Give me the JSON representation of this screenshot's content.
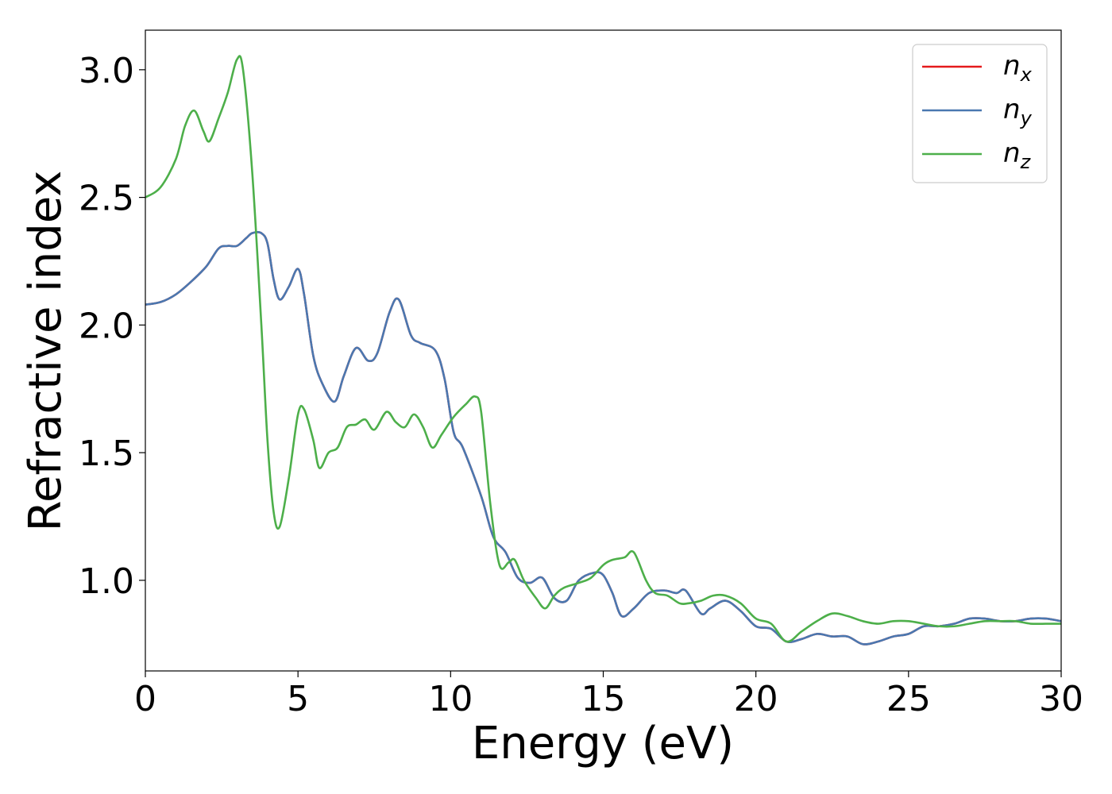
{
  "chart_data": {
    "type": "line",
    "xlabel": "Energy (eV)",
    "ylabel": "Refractive index",
    "xlim": [
      0,
      30
    ],
    "ylim": [
      0.645,
      3.155
    ],
    "xticks": [
      0,
      5,
      10,
      15,
      20,
      25,
      30
    ],
    "yticks": [
      1.0,
      1.5,
      2.0,
      2.5,
      3.0
    ],
    "xtick_labels": [
      "0",
      "5",
      "10",
      "15",
      "20",
      "25",
      "30"
    ],
    "ytick_labels": [
      "1.0",
      "1.5",
      "2.0",
      "2.5",
      "3.0"
    ],
    "grid": false,
    "legend_position": "top-right",
    "series": [
      {
        "name": "n",
        "sub": "x",
        "color": "#e41a1c",
        "points": [
          [
            0,
            2.08
          ],
          [
            0.5,
            2.09
          ],
          [
            1,
            2.12
          ],
          [
            1.5,
            2.17
          ],
          [
            2,
            2.23
          ],
          [
            2.4,
            2.3
          ],
          [
            2.7,
            2.31
          ],
          [
            3.0,
            2.31
          ],
          [
            3.3,
            2.34
          ],
          [
            3.5,
            2.36
          ],
          [
            3.8,
            2.36
          ],
          [
            4.0,
            2.32
          ],
          [
            4.2,
            2.18
          ],
          [
            4.4,
            2.1
          ],
          [
            4.7,
            2.15
          ],
          [
            5.0,
            2.22
          ],
          [
            5.2,
            2.12
          ],
          [
            5.5,
            1.88
          ],
          [
            5.8,
            1.77
          ],
          [
            6.2,
            1.7
          ],
          [
            6.5,
            1.8
          ],
          [
            6.9,
            1.91
          ],
          [
            7.3,
            1.86
          ],
          [
            7.6,
            1.89
          ],
          [
            8.0,
            2.05
          ],
          [
            8.3,
            2.1
          ],
          [
            8.7,
            1.96
          ],
          [
            9.0,
            1.93
          ],
          [
            9.5,
            1.9
          ],
          [
            9.8,
            1.79
          ],
          [
            10.1,
            1.58
          ],
          [
            10.4,
            1.52
          ],
          [
            11.0,
            1.33
          ],
          [
            11.4,
            1.17
          ],
          [
            11.8,
            1.11
          ],
          [
            12.2,
            1.01
          ],
          [
            12.6,
            0.99
          ],
          [
            13.0,
            1.01
          ],
          [
            13.4,
            0.93
          ],
          [
            13.8,
            0.92
          ],
          [
            14.2,
            1.0
          ],
          [
            14.7,
            1.03
          ],
          [
            15.0,
            1.02
          ],
          [
            15.3,
            0.95
          ],
          [
            15.6,
            0.86
          ],
          [
            16.0,
            0.89
          ],
          [
            16.5,
            0.95
          ],
          [
            17.0,
            0.96
          ],
          [
            17.4,
            0.95
          ],
          [
            17.7,
            0.96
          ],
          [
            18.2,
            0.87
          ],
          [
            18.5,
            0.89
          ],
          [
            19.0,
            0.92
          ],
          [
            19.5,
            0.88
          ],
          [
            20.0,
            0.82
          ],
          [
            20.5,
            0.81
          ],
          [
            21.0,
            0.76
          ],
          [
            21.5,
            0.77
          ],
          [
            22.0,
            0.79
          ],
          [
            22.5,
            0.78
          ],
          [
            23.0,
            0.78
          ],
          [
            23.5,
            0.75
          ],
          [
            24.0,
            0.76
          ],
          [
            24.5,
            0.78
          ],
          [
            25.0,
            0.79
          ],
          [
            25.5,
            0.82
          ],
          [
            26.0,
            0.82
          ],
          [
            26.5,
            0.83
          ],
          [
            27.0,
            0.85
          ],
          [
            27.5,
            0.85
          ],
          [
            28.0,
            0.84
          ],
          [
            28.5,
            0.84
          ],
          [
            29.0,
            0.85
          ],
          [
            29.5,
            0.85
          ],
          [
            30.0,
            0.84
          ]
        ]
      },
      {
        "name": "n",
        "sub": "y",
        "color": "#4a78b0",
        "points": [
          [
            0,
            2.08
          ],
          [
            0.5,
            2.09
          ],
          [
            1,
            2.12
          ],
          [
            1.5,
            2.17
          ],
          [
            2,
            2.23
          ],
          [
            2.4,
            2.3
          ],
          [
            2.7,
            2.31
          ],
          [
            3.0,
            2.31
          ],
          [
            3.3,
            2.34
          ],
          [
            3.5,
            2.36
          ],
          [
            3.8,
            2.36
          ],
          [
            4.0,
            2.32
          ],
          [
            4.2,
            2.18
          ],
          [
            4.4,
            2.1
          ],
          [
            4.7,
            2.15
          ],
          [
            5.0,
            2.22
          ],
          [
            5.2,
            2.12
          ],
          [
            5.5,
            1.88
          ],
          [
            5.8,
            1.77
          ],
          [
            6.2,
            1.7
          ],
          [
            6.5,
            1.8
          ],
          [
            6.9,
            1.91
          ],
          [
            7.3,
            1.86
          ],
          [
            7.6,
            1.89
          ],
          [
            8.0,
            2.05
          ],
          [
            8.3,
            2.1
          ],
          [
            8.7,
            1.96
          ],
          [
            9.0,
            1.93
          ],
          [
            9.5,
            1.9
          ],
          [
            9.8,
            1.79
          ],
          [
            10.1,
            1.58
          ],
          [
            10.4,
            1.52
          ],
          [
            11.0,
            1.33
          ],
          [
            11.4,
            1.17
          ],
          [
            11.8,
            1.11
          ],
          [
            12.2,
            1.01
          ],
          [
            12.6,
            0.99
          ],
          [
            13.0,
            1.01
          ],
          [
            13.4,
            0.93
          ],
          [
            13.8,
            0.92
          ],
          [
            14.2,
            1.0
          ],
          [
            14.7,
            1.03
          ],
          [
            15.0,
            1.02
          ],
          [
            15.3,
            0.95
          ],
          [
            15.6,
            0.86
          ],
          [
            16.0,
            0.89
          ],
          [
            16.5,
            0.95
          ],
          [
            17.0,
            0.96
          ],
          [
            17.4,
            0.95
          ],
          [
            17.7,
            0.96
          ],
          [
            18.2,
            0.87
          ],
          [
            18.5,
            0.89
          ],
          [
            19.0,
            0.92
          ],
          [
            19.5,
            0.88
          ],
          [
            20.0,
            0.82
          ],
          [
            20.5,
            0.81
          ],
          [
            21.0,
            0.76
          ],
          [
            21.5,
            0.77
          ],
          [
            22.0,
            0.79
          ],
          [
            22.5,
            0.78
          ],
          [
            23.0,
            0.78
          ],
          [
            23.5,
            0.75
          ],
          [
            24.0,
            0.76
          ],
          [
            24.5,
            0.78
          ],
          [
            25.0,
            0.79
          ],
          [
            25.5,
            0.82
          ],
          [
            26.0,
            0.82
          ],
          [
            26.5,
            0.83
          ],
          [
            27.0,
            0.85
          ],
          [
            27.5,
            0.85
          ],
          [
            28.0,
            0.84
          ],
          [
            28.5,
            0.84
          ],
          [
            29.0,
            0.85
          ],
          [
            29.5,
            0.85
          ],
          [
            30.0,
            0.84
          ]
        ]
      },
      {
        "name": "n",
        "sub": "z",
        "color": "#4daf4a",
        "points": [
          [
            0,
            2.5
          ],
          [
            0.5,
            2.54
          ],
          [
            1.0,
            2.65
          ],
          [
            1.3,
            2.78
          ],
          [
            1.6,
            2.84
          ],
          [
            1.9,
            2.76
          ],
          [
            2.1,
            2.72
          ],
          [
            2.4,
            2.81
          ],
          [
            2.7,
            2.91
          ],
          [
            3.0,
            3.04
          ],
          [
            3.2,
            3.0
          ],
          [
            3.5,
            2.6
          ],
          [
            3.8,
            2.0
          ],
          [
            4.0,
            1.55
          ],
          [
            4.2,
            1.27
          ],
          [
            4.4,
            1.21
          ],
          [
            4.7,
            1.4
          ],
          [
            5.0,
            1.65
          ],
          [
            5.2,
            1.67
          ],
          [
            5.5,
            1.55
          ],
          [
            5.7,
            1.44
          ],
          [
            6.0,
            1.5
          ],
          [
            6.3,
            1.52
          ],
          [
            6.6,
            1.6
          ],
          [
            6.9,
            1.61
          ],
          [
            7.2,
            1.63
          ],
          [
            7.5,
            1.59
          ],
          [
            7.9,
            1.66
          ],
          [
            8.2,
            1.62
          ],
          [
            8.5,
            1.6
          ],
          [
            8.8,
            1.65
          ],
          [
            9.1,
            1.6
          ],
          [
            9.4,
            1.52
          ],
          [
            9.7,
            1.57
          ],
          [
            10.1,
            1.64
          ],
          [
            10.5,
            1.69
          ],
          [
            10.8,
            1.72
          ],
          [
            11.0,
            1.66
          ],
          [
            11.3,
            1.3
          ],
          [
            11.6,
            1.06
          ],
          [
            11.9,
            1.07
          ],
          [
            12.1,
            1.08
          ],
          [
            12.4,
            1.0
          ],
          [
            12.8,
            0.93
          ],
          [
            13.1,
            0.89
          ],
          [
            13.4,
            0.94
          ],
          [
            13.7,
            0.97
          ],
          [
            14.2,
            0.99
          ],
          [
            14.6,
            1.01
          ],
          [
            15.0,
            1.06
          ],
          [
            15.3,
            1.08
          ],
          [
            15.7,
            1.09
          ],
          [
            16.0,
            1.11
          ],
          [
            16.4,
            1.0
          ],
          [
            16.7,
            0.95
          ],
          [
            17.1,
            0.94
          ],
          [
            17.5,
            0.91
          ],
          [
            17.8,
            0.91
          ],
          [
            18.2,
            0.92
          ],
          [
            18.6,
            0.94
          ],
          [
            19.0,
            0.94
          ],
          [
            19.5,
            0.91
          ],
          [
            20.0,
            0.85
          ],
          [
            20.5,
            0.83
          ],
          [
            21.0,
            0.76
          ],
          [
            21.5,
            0.8
          ],
          [
            22.0,
            0.84
          ],
          [
            22.5,
            0.87
          ],
          [
            23.0,
            0.86
          ],
          [
            23.5,
            0.84
          ],
          [
            24.0,
            0.83
          ],
          [
            24.5,
            0.84
          ],
          [
            25.0,
            0.84
          ],
          [
            25.5,
            0.83
          ],
          [
            26.0,
            0.82
          ],
          [
            26.5,
            0.82
          ],
          [
            27.0,
            0.83
          ],
          [
            27.5,
            0.84
          ],
          [
            28.0,
            0.84
          ],
          [
            28.5,
            0.84
          ],
          [
            29.0,
            0.83
          ],
          [
            29.5,
            0.83
          ],
          [
            30.0,
            0.83
          ]
        ]
      }
    ]
  }
}
